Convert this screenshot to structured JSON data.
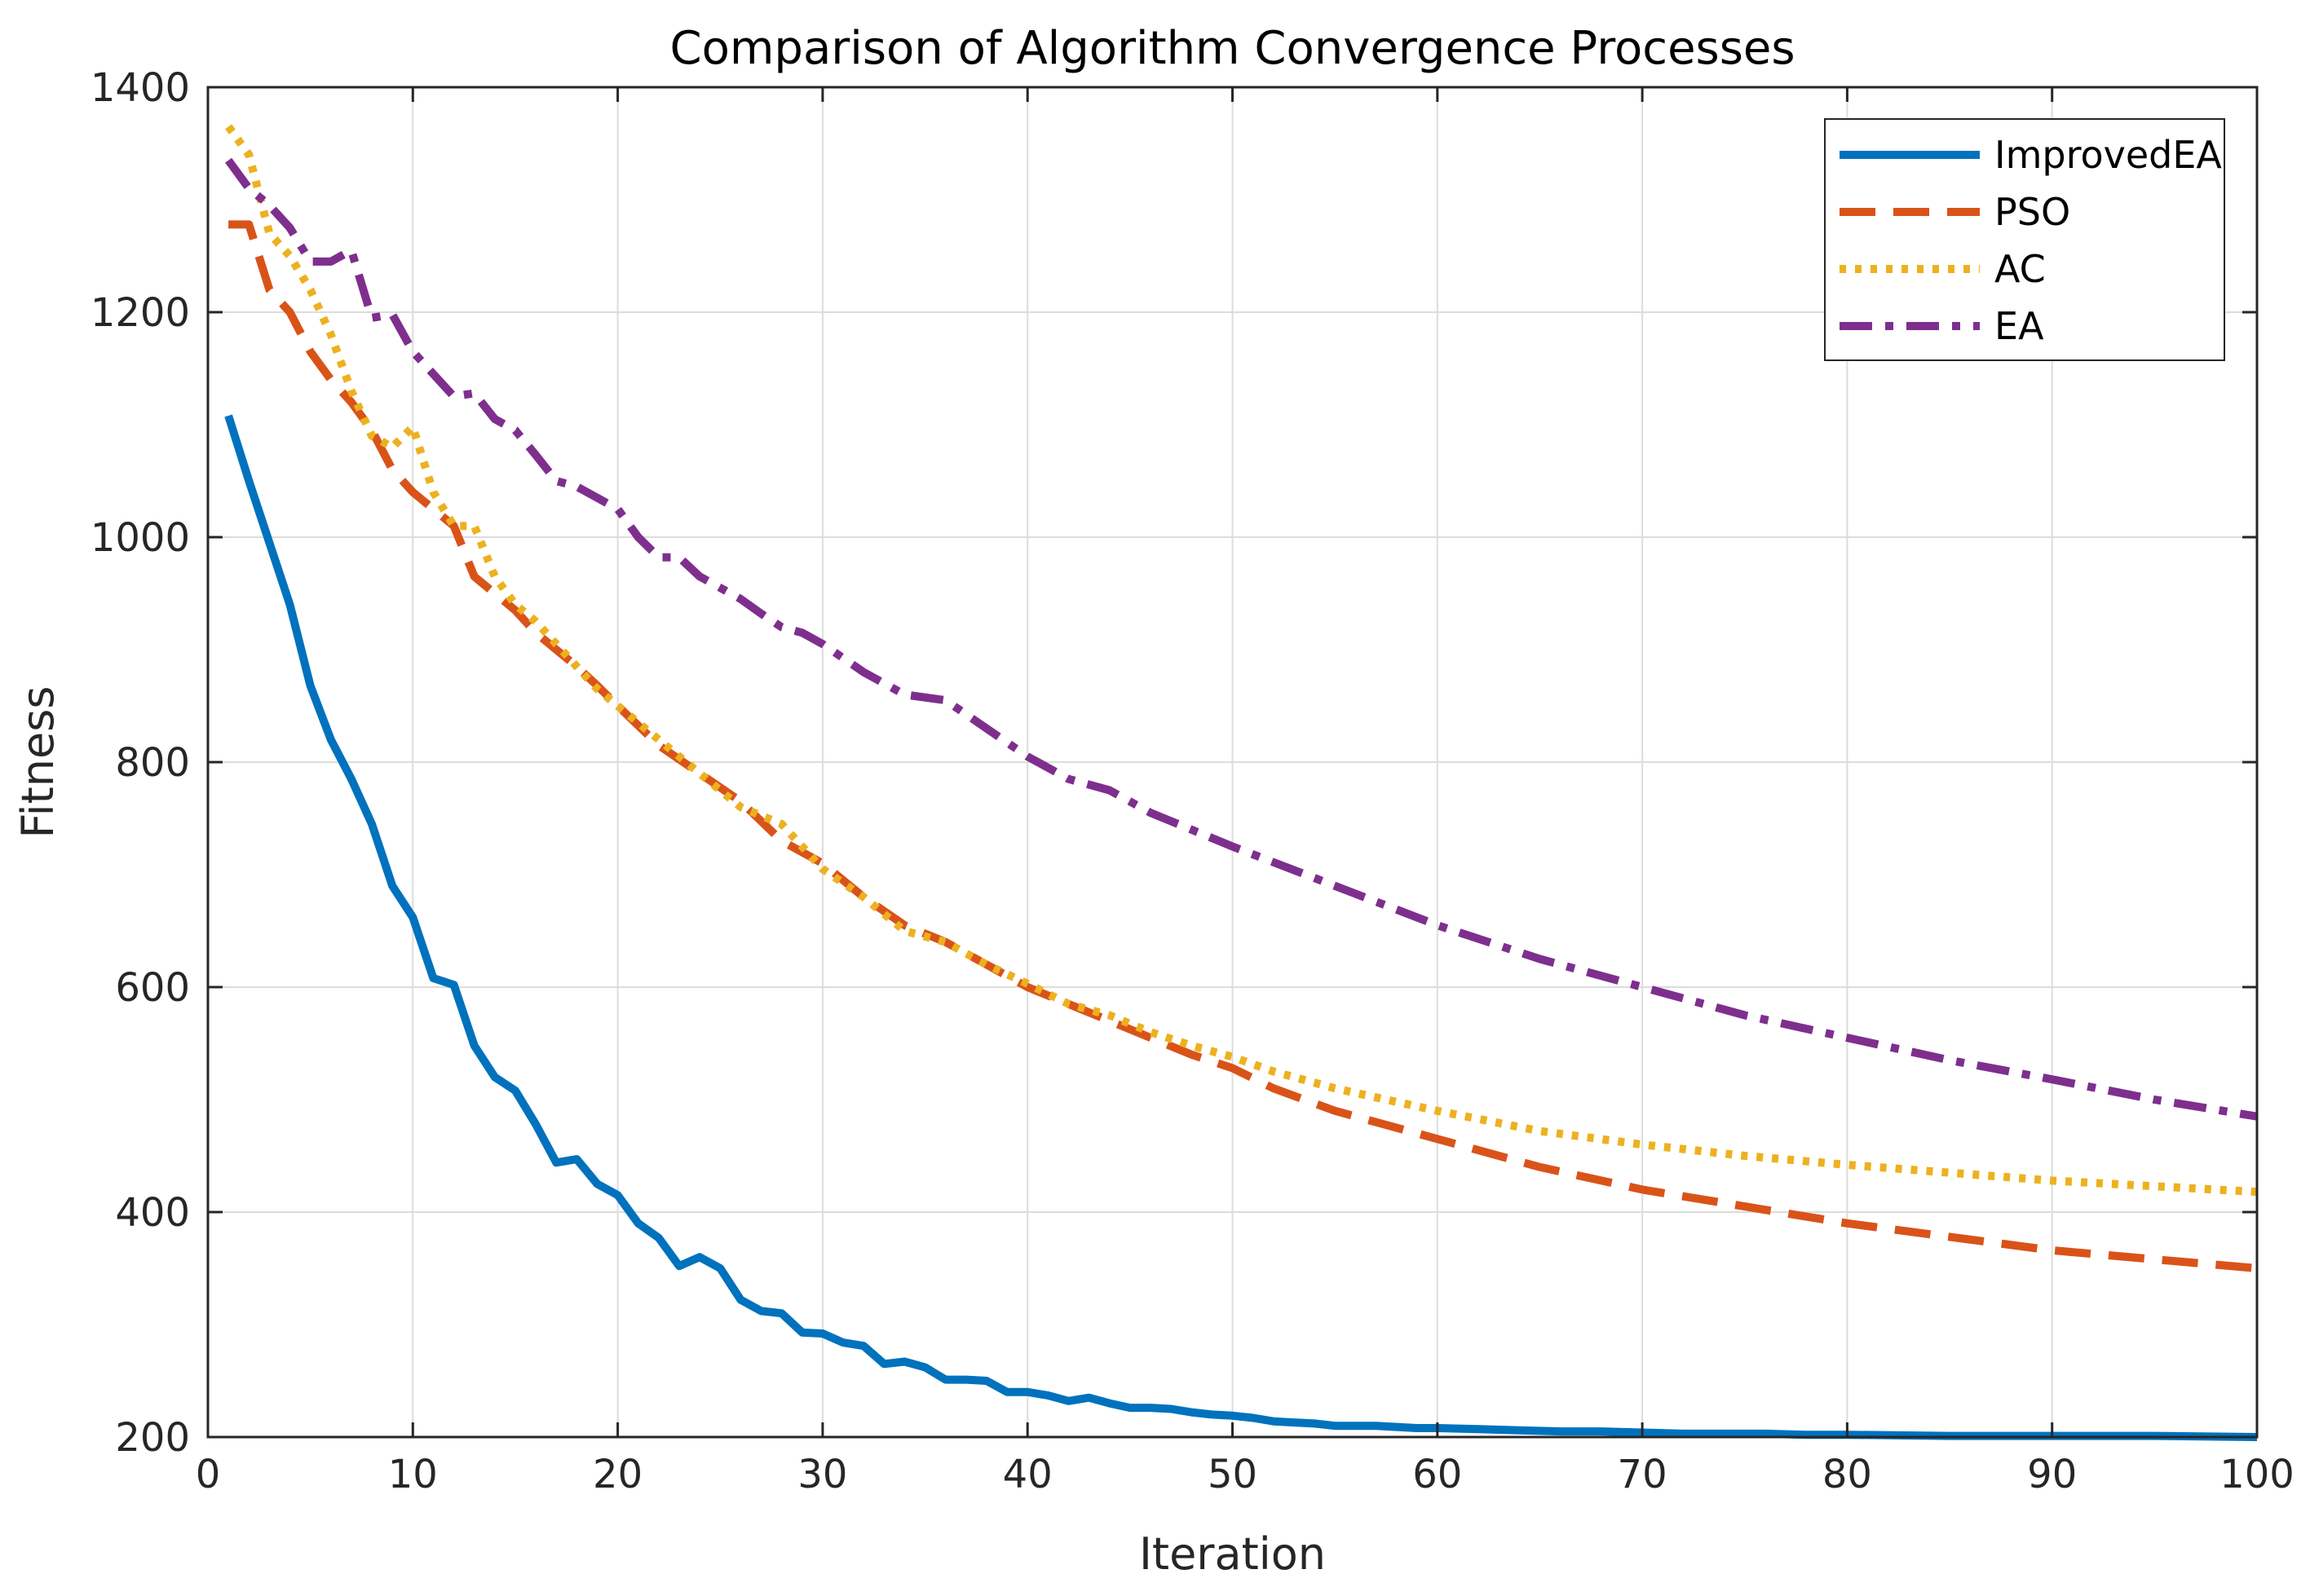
{
  "chart_data": {
    "type": "line",
    "title": "Comparison of Algorithm Convergence Processes",
    "xlabel": "Iteration",
    "ylabel": "Fitness",
    "xlim": [
      0,
      100
    ],
    "ylim": [
      200,
      1400
    ],
    "xticks": [
      0,
      10,
      20,
      30,
      40,
      50,
      60,
      70,
      80,
      90,
      100
    ],
    "yticks": [
      200,
      400,
      600,
      800,
      1000,
      1200,
      1400
    ],
    "grid": true,
    "legend_position": "top-right",
    "series": [
      {
        "name": "ImprovedEA",
        "color": "#0072BD",
        "style": "solid",
        "x": [
          1,
          2,
          3,
          4,
          5,
          6,
          7,
          8,
          9,
          10,
          11,
          12,
          13,
          14,
          15,
          16,
          17,
          18,
          19,
          20,
          21,
          22,
          23,
          24,
          25,
          26,
          27,
          28,
          29,
          30,
          31,
          32,
          33,
          34,
          35,
          36,
          37,
          38,
          39,
          40,
          41,
          42,
          43,
          44,
          45,
          46,
          47,
          48,
          49,
          50,
          51,
          52,
          53,
          54,
          55,
          56,
          57,
          58,
          59,
          60,
          62,
          64,
          66,
          68,
          70,
          72,
          74,
          76,
          78,
          80,
          85,
          90,
          95,
          100
        ],
        "values": [
          1108,
          1050,
          995,
          940,
          868,
          820,
          785,
          745,
          690,
          662,
          608,
          602,
          548,
          520,
          508,
          478,
          444,
          447,
          425,
          415,
          390,
          377,
          352,
          360,
          350,
          322,
          312,
          310,
          293,
          292,
          284,
          281,
          265,
          267,
          262,
          251,
          251,
          250,
          240,
          240,
          237,
          232,
          235,
          230,
          226,
          226,
          225,
          222,
          220,
          219,
          217,
          214,
          213,
          212,
          210,
          210,
          210,
          209,
          208,
          208,
          207,
          206,
          205,
          205,
          204,
          203,
          203,
          203,
          202,
          202,
          201,
          201,
          201,
          200
        ]
      },
      {
        "name": "PSO",
        "color": "#D95319",
        "style": "dashed",
        "x": [
          1,
          2,
          3,
          4,
          5,
          6,
          7,
          8,
          9,
          10,
          11,
          12,
          13,
          14,
          15,
          16,
          17,
          18,
          19,
          20,
          22,
          24,
          26,
          28,
          30,
          32,
          34,
          36,
          38,
          40,
          42,
          44,
          46,
          48,
          50,
          52,
          55,
          60,
          65,
          70,
          75,
          80,
          85,
          90,
          95,
          100
        ],
        "values": [
          1278,
          1278,
          1220,
          1200,
          1165,
          1140,
          1120,
          1095,
          1060,
          1040,
          1025,
          1010,
          965,
          950,
          935,
          915,
          900,
          885,
          868,
          850,
          815,
          790,
          765,
          730,
          710,
          680,
          655,
          640,
          620,
          600,
          585,
          570,
          555,
          540,
          528,
          510,
          490,
          465,
          440,
          420,
          405,
          390,
          378,
          366,
          358,
          350
        ]
      },
      {
        "name": "AC",
        "color": "#EDB120",
        "style": "dotted",
        "x": [
          1,
          2,
          3,
          4,
          5,
          6,
          7,
          8,
          9,
          10,
          11,
          12,
          13,
          14,
          15,
          16,
          17,
          18,
          19,
          20,
          22,
          24,
          26,
          28,
          30,
          32,
          34,
          36,
          38,
          40,
          42,
          44,
          46,
          48,
          50,
          52,
          55,
          60,
          65,
          70,
          75,
          80,
          85,
          90,
          95,
          100
        ],
        "values": [
          1365,
          1340,
          1270,
          1250,
          1220,
          1180,
          1130,
          1090,
          1080,
          1098,
          1040,
          1010,
          1010,
          965,
          940,
          925,
          905,
          885,
          865,
          850,
          820,
          790,
          760,
          745,
          705,
          680,
          650,
          640,
          620,
          603,
          585,
          575,
          560,
          548,
          538,
          525,
          510,
          490,
          472,
          460,
          450,
          442,
          435,
          428,
          423,
          418
        ]
      },
      {
        "name": "EA",
        "color": "#7E2F8E",
        "style": "dashdot",
        "x": [
          1,
          2,
          3,
          4,
          5,
          6,
          7,
          8,
          9,
          10,
          11,
          12,
          13,
          14,
          15,
          16,
          17,
          18,
          19,
          20,
          21,
          22,
          23,
          24,
          25,
          26,
          27,
          28,
          29,
          30,
          32,
          34,
          36,
          38,
          40,
          42,
          44,
          46,
          48,
          50,
          55,
          60,
          65,
          70,
          75,
          80,
          85,
          90,
          95,
          100
        ],
        "values": [
          1335,
          1310,
          1295,
          1275,
          1245,
          1245,
          1255,
          1195,
          1198,
          1165,
          1145,
          1125,
          1128,
          1105,
          1095,
          1073,
          1050,
          1045,
          1035,
          1025,
          1000,
          982,
          982,
          965,
          955,
          945,
          932,
          920,
          915,
          905,
          880,
          860,
          855,
          830,
          805,
          785,
          775,
          755,
          740,
          725,
          690,
          655,
          625,
          600,
          575,
          555,
          535,
          518,
          500,
          485
        ]
      }
    ]
  }
}
